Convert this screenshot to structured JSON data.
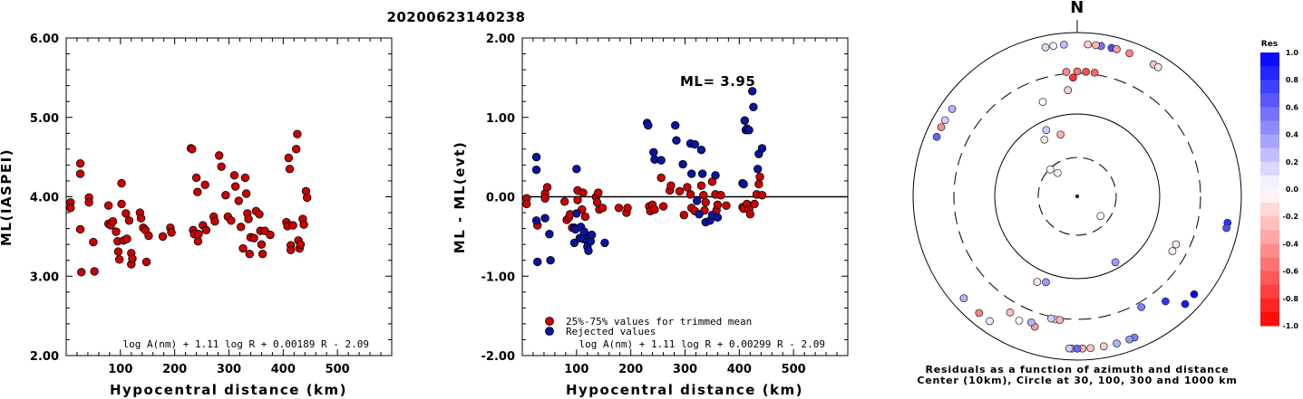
{
  "title": "20200623140238",
  "chart_data": [
    {
      "type": "scatter",
      "ylabel": "ML(IASPEI)",
      "xlabel": "Hypocentral distance (km)",
      "xlim": [
        0,
        600
      ],
      "ylim": [
        2.0,
        6.0
      ],
      "yticks": [
        "2.00",
        "3.00",
        "4.00",
        "5.00",
        "6.00"
      ],
      "xticks": [
        "100",
        "200",
        "300",
        "400",
        "500"
      ],
      "formula": "log A(nm) + 1.11 log R + 0.00189 R - 2.09",
      "color": "#cc0000",
      "points": [
        [
          8,
          3.93
        ],
        [
          8,
          3.86
        ],
        [
          26,
          4.42
        ],
        [
          26,
          4.29
        ],
        [
          26,
          3.59
        ],
        [
          28,
          3.05
        ],
        [
          42,
          3.99
        ],
        [
          42,
          3.93
        ],
        [
          50,
          3.43
        ],
        [
          52,
          3.06
        ],
        [
          78,
          3.89
        ],
        [
          78,
          3.66
        ],
        [
          82,
          3.64
        ],
        [
          86,
          3.69
        ],
        [
          92,
          3.56
        ],
        [
          95,
          3.44
        ],
        [
          96,
          3.31
        ],
        [
          98,
          3.21
        ],
        [
          102,
          4.17
        ],
        [
          102,
          3.91
        ],
        [
          106,
          3.45
        ],
        [
          110,
          3.79
        ],
        [
          112,
          3.47
        ],
        [
          116,
          3.7
        ],
        [
          120,
          3.29
        ],
        [
          120,
          3.15
        ],
        [
          122,
          3.22
        ],
        [
          136,
          3.8
        ],
        [
          138,
          3.73
        ],
        [
          142,
          3.61
        ],
        [
          146,
          3.58
        ],
        [
          148,
          3.18
        ],
        [
          152,
          3.51
        ],
        [
          178,
          3.5
        ],
        [
          192,
          3.61
        ],
        [
          194,
          3.55
        ],
        [
          230,
          4.61
        ],
        [
          232,
          4.6
        ],
        [
          234,
          3.58
        ],
        [
          236,
          3.53
        ],
        [
          240,
          4.24
        ],
        [
          242,
          4.06
        ],
        [
          243,
          3.44
        ],
        [
          244,
          3.53
        ],
        [
          252,
          3.64
        ],
        [
          256,
          4.15
        ],
        [
          258,
          3.58
        ],
        [
          272,
          3.75
        ],
        [
          274,
          3.69
        ],
        [
          282,
          4.52
        ],
        [
          286,
          4.38
        ],
        [
          294,
          4.02
        ],
        [
          298,
          3.75
        ],
        [
          304,
          3.7
        ],
        [
          310,
          4.27
        ],
        [
          312,
          4.13
        ],
        [
          318,
          3.95
        ],
        [
          322,
          3.62
        ],
        [
          326,
          3.35
        ],
        [
          330,
          4.24
        ],
        [
          332,
          4.04
        ],
        [
          334,
          3.79
        ],
        [
          336,
          3.72
        ],
        [
          338,
          3.28
        ],
        [
          340,
          3.49
        ],
        [
          346,
          3.48
        ],
        [
          350,
          3.82
        ],
        [
          356,
          3.78
        ],
        [
          358,
          3.57
        ],
        [
          360,
          3.4
        ],
        [
          362,
          3.28
        ],
        [
          366,
          3.57
        ],
        [
          376,
          3.52
        ],
        [
          406,
          3.68
        ],
        [
          408,
          3.63
        ],
        [
          410,
          4.49
        ],
        [
          412,
          4.35
        ],
        [
          414,
          3.39
        ],
        [
          414,
          3.33
        ],
        [
          418,
          3.64
        ],
        [
          424,
          4.6
        ],
        [
          426,
          4.79
        ],
        [
          428,
          3.45
        ],
        [
          430,
          3.35
        ],
        [
          432,
          3.4
        ],
        [
          436,
          3.72
        ],
        [
          438,
          3.65
        ],
        [
          442,
          4.07
        ],
        [
          444,
          3.99
        ]
      ]
    },
    {
      "type": "scatter",
      "ylabel": "ML - ML(evt)",
      "xlabel": "Hypocentral distance (km)",
      "xlim": [
        0,
        600
      ],
      "ylim": [
        -2.0,
        2.0
      ],
      "yticks": [
        "-2.00",
        "-1.00",
        "0.00",
        "1.00",
        "2.00"
      ],
      "xticks": [
        "100",
        "200",
        "300",
        "400",
        "500"
      ],
      "annotation": "ML= 3.95",
      "formula": "log A(nm) + 1.11 log R + 0.00299 R - 2.09",
      "legend": [
        "25%-75% values for trimmed mean",
        "Rejected values"
      ],
      "series": [
        {
          "name": "25%-75% values for trimmed mean",
          "color": "#cc0000",
          "points": [
            [
              8,
              -0.02
            ],
            [
              8,
              -0.09
            ],
            [
              28,
              -0.36
            ],
            [
              42,
              0.04
            ],
            [
              42,
              -0.02
            ],
            [
              46,
              0.12
            ],
            [
              78,
              -0.06
            ],
            [
              82,
              -0.29
            ],
            [
              86,
              -0.26
            ],
            [
              88,
              -0.22
            ],
            [
              92,
              -0.39
            ],
            [
              102,
              0.08
            ],
            [
              102,
              -0.04
            ],
            [
              110,
              -0.16
            ],
            [
              112,
              0.05
            ],
            [
              116,
              -0.25
            ],
            [
              136,
              0.0
            ],
            [
              138,
              -0.07
            ],
            [
              140,
              0.05
            ],
            [
              142,
              -0.16
            ],
            [
              148,
              -0.14
            ],
            [
              178,
              -0.14
            ],
            [
              192,
              -0.2
            ],
            [
              194,
              -0.14
            ],
            [
              234,
              -0.12
            ],
            [
              236,
              -0.18
            ],
            [
              240,
              -0.1
            ],
            [
              244,
              -0.16
            ],
            [
              256,
              0.24
            ],
            [
              260,
              -0.12
            ],
            [
              272,
              0.08
            ],
            [
              274,
              0.14
            ],
            [
              290,
              0.07
            ],
            [
              298,
              -0.23
            ],
            [
              304,
              0.12
            ],
            [
              310,
              0.03
            ],
            [
              312,
              -0.14
            ],
            [
              318,
              -0.18
            ],
            [
              330,
              0.14
            ],
            [
              334,
              0.02
            ],
            [
              336,
              -0.17
            ],
            [
              338,
              -0.07
            ],
            [
              350,
              0.19
            ],
            [
              356,
              0.03
            ],
            [
              358,
              -0.17
            ],
            [
              360,
              -0.1
            ],
            [
              366,
              0.02
            ],
            [
              376,
              -0.11
            ],
            [
              406,
              -0.13
            ],
            [
              408,
              -0.15
            ],
            [
              414,
              -0.09
            ],
            [
              418,
              -0.16
            ],
            [
              420,
              -0.22
            ],
            [
              428,
              -0.09
            ],
            [
              432,
              0.03
            ],
            [
              436,
              0.16
            ],
            [
              438,
              0.25
            ],
            [
              442,
              0.02
            ]
          ]
        },
        {
          "name": "Rejected values",
          "color": "#0a14a0",
          "points": [
            [
              26,
              0.5
            ],
            [
              26,
              0.34
            ],
            [
              26,
              -0.3
            ],
            [
              28,
              -0.82
            ],
            [
              42,
              -0.27
            ],
            [
              50,
              -0.47
            ],
            [
              52,
              -0.8
            ],
            [
              96,
              -0.58
            ],
            [
              96,
              -0.39
            ],
            [
              98,
              -0.41
            ],
            [
              100,
              0.35
            ],
            [
              100,
              -0.21
            ],
            [
              106,
              -0.52
            ],
            [
              108,
              -0.38
            ],
            [
              112,
              -0.53
            ],
            [
              114,
              -0.44
            ],
            [
              120,
              -0.56
            ],
            [
              120,
              -0.63
            ],
            [
              122,
              -0.68
            ],
            [
              124,
              -0.5
            ],
            [
              126,
              -0.56
            ],
            [
              128,
              -0.48
            ],
            [
              152,
              -0.58
            ],
            [
              230,
              0.93
            ],
            [
              232,
              0.9
            ],
            [
              242,
              0.56
            ],
            [
              244,
              0.47
            ],
            [
              256,
              0.46
            ],
            [
              282,
              0.9
            ],
            [
              284,
              0.71
            ],
            [
              296,
              0.41
            ],
            [
              310,
              0.67
            ],
            [
              312,
              0.29
            ],
            [
              318,
              0.66
            ],
            [
              322,
              -0.05
            ],
            [
              326,
              -0.22
            ],
            [
              330,
              0.59
            ],
            [
              332,
              0.29
            ],
            [
              338,
              -0.32
            ],
            [
              346,
              -0.3
            ],
            [
              350,
              -0.23
            ],
            [
              356,
              0.27
            ],
            [
              360,
              -0.26
            ],
            [
              406,
              0.17
            ],
            [
              408,
              0.16
            ],
            [
              410,
              0.96
            ],
            [
              412,
              0.84
            ],
            [
              414,
              0.86
            ],
            [
              418,
              0.84
            ],
            [
              424,
              1.33
            ],
            [
              426,
              1.13
            ],
            [
              434,
              0.35
            ],
            [
              436,
              0.54
            ],
            [
              442,
              0.61
            ]
          ]
        }
      ]
    },
    {
      "type": "polar-scatter",
      "north_label": "N",
      "caption_line1": "Residuals as a function of azimuth and distance",
      "caption_line2": "Center (10km), Circle at 30, 100, 300 and 1000 km",
      "colorbar": {
        "title": "Res",
        "ticks": [
          "1.0",
          "0.8",
          "0.6",
          "0.4",
          "0.2",
          "0.0",
          "-0.2",
          "-0.4",
          "-0.6",
          "-0.8",
          "-1.0"
        ],
        "max_color": "#0000ff",
        "min_color": "#ff0000"
      },
      "circles_km": [
        30,
        100,
        300,
        1000
      ],
      "stations": [
        [
          13,
          1.0,
          0.7
        ],
        [
          9,
          1.0,
          0.55
        ],
        [
          355,
          1.0,
          0.25
        ],
        [
          351,
          1.0,
          -0.05
        ],
        [
          348,
          1.0,
          0.15
        ],
        [
          4,
          1.0,
          -0.2
        ],
        [
          7,
          1.0,
          -0.3
        ],
        [
          15,
          1.0,
          -0.4
        ],
        [
          20,
          1.0,
          -0.5
        ],
        [
          30,
          1.0,
          -0.25
        ],
        [
          32,
          1.0,
          -0.1
        ],
        [
          355,
          0.82,
          -0.45
        ],
        [
          0,
          0.82,
          -0.55
        ],
        [
          4,
          0.82,
          -0.7
        ],
        [
          8,
          0.82,
          -0.6
        ],
        [
          358,
          0.78,
          -0.8
        ],
        [
          355,
          0.7,
          -0.2
        ],
        [
          340,
          0.66,
          0.0
        ],
        [
          305,
          1.0,
          0.3
        ],
        [
          300,
          1.0,
          0.2
        ],
        [
          297,
          1.0,
          -0.45
        ],
        [
          293,
          1.0,
          0.6
        ],
        [
          345,
          0.42,
          -0.3
        ],
        [
          330,
          0.43,
          -0.1
        ],
        [
          335,
          0.48,
          0.2
        ],
        [
          315,
          0.25,
          0.0
        ],
        [
          320,
          0.2,
          -0.05
        ],
        [
          150,
          0.5,
          0.4
        ],
        [
          130,
          0.2,
          0.0
        ],
        [
          100,
          1.0,
          0.8
        ],
        [
          102,
          1.0,
          0.7
        ],
        [
          120,
          0.72,
          0.0
        ],
        [
          116,
          0.72,
          -0.1
        ],
        [
          150,
          0.84,
          0.5
        ],
        [
          140,
          0.9,
          0.8
        ],
        [
          135,
          1.0,
          0.9
        ],
        [
          130,
          1.0,
          1.0
        ],
        [
          158,
          1.0,
          0.5
        ],
        [
          160,
          1.0,
          0.4
        ],
        [
          165,
          1.0,
          0.3
        ],
        [
          170,
          1.0,
          -0.2
        ],
        [
          175,
          1.0,
          -0.25
        ],
        [
          178,
          1.0,
          -0.3
        ],
        [
          182,
          1.0,
          -0.35
        ],
        [
          180,
          1.0,
          0.6
        ],
        [
          183,
          1.0,
          0.2
        ],
        [
          190,
          0.82,
          0.1
        ],
        [
          188,
          0.82,
          -0.3
        ],
        [
          192,
          0.82,
          0.2
        ],
        [
          198,
          0.9,
          -0.4
        ],
        [
          205,
          0.9,
          0.0
        ],
        [
          200,
          0.88,
          0.3
        ],
        [
          210,
          0.88,
          -0.25
        ],
        [
          215,
          1.0,
          0.1
        ],
        [
          220,
          1.0,
          -0.5
        ],
        [
          228,
          1.0,
          0.3
        ],
        [
          205,
          0.62,
          -0.1
        ],
        [
          200,
          0.6,
          0.4
        ]
      ]
    }
  ]
}
